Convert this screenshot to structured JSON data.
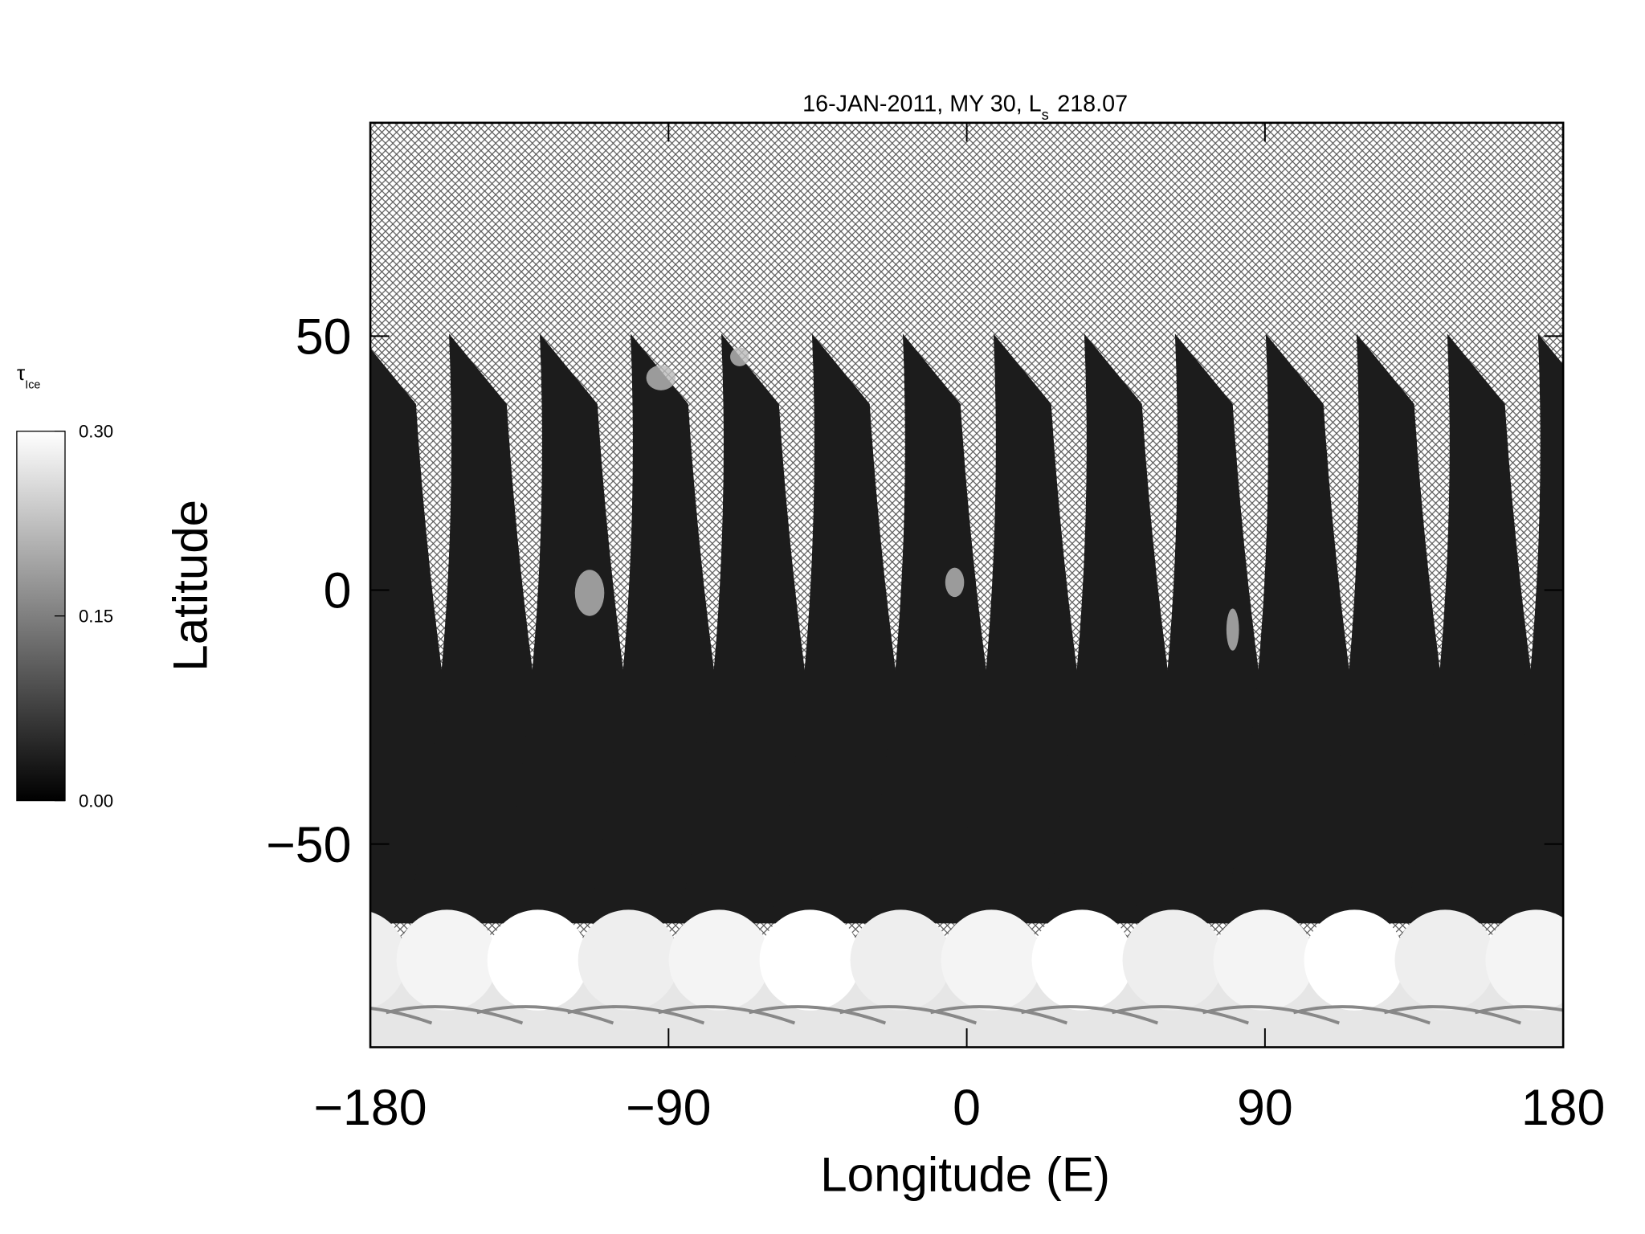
{
  "chart_data": {
    "type": "map",
    "title": "16-JAN-2011, MY 30,",
    "solar_longitude": {
      "symbol": "L",
      "subscript": "s",
      "value": "218.07"
    },
    "xlabel": "Longitude (E)",
    "ylabel": "Latitude",
    "xlim": [
      -180,
      180
    ],
    "ylim": [
      -90,
      92
    ],
    "xticks": [
      {
        "value": -180,
        "label": "−180"
      },
      {
        "value": -90,
        "label": "−90"
      },
      0,
      90,
      180
    ],
    "yticks": [
      {
        "value": -50,
        "label": "−50"
      },
      0,
      50
    ],
    "colorbar": {
      "symbol": "τ",
      "subscript": "Ice",
      "lim": [
        0,
        0.3
      ],
      "ticks": [
        {
          "value": 0.3,
          "label": "0.30"
        },
        {
          "value": 0.15,
          "label": "0.15"
        },
        {
          "value": 0,
          "label": "0.00"
        }
      ],
      "colors": [
        "#000000",
        "#ffffff"
      ]
    }
  }
}
